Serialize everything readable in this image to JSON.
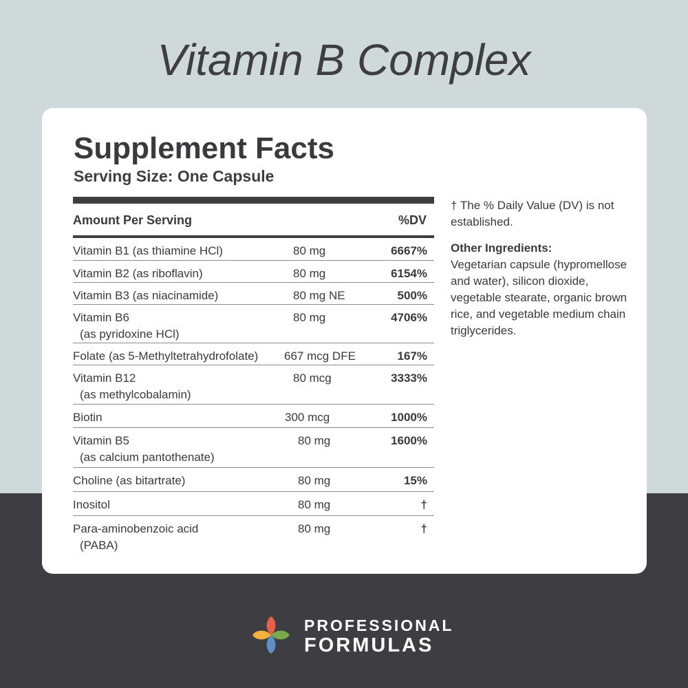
{
  "product_title": "Vitamin B Complex",
  "facts": {
    "heading": "Supplement Facts",
    "serving_size": "Serving Size: One Capsule",
    "amount_per_serving_label": "Amount Per Serving",
    "dv_label": "%DV",
    "rows": [
      {
        "name": "Vitamin B1 (as thiamine HCl)",
        "sub": "",
        "amount": "80 mg",
        "dv": "6667%"
      },
      {
        "name": "Vitamin B2 (as riboflavin)",
        "sub": "",
        "amount": "80 mg",
        "dv": "6154%"
      },
      {
        "name": "Vitamin B3 (as niacinamide)",
        "sub": "",
        "amount": "80 mg NE",
        "dv": "500%"
      },
      {
        "name": "Vitamin B6",
        "sub": "(as pyridoxine HCl)",
        "amount": "80 mg",
        "dv": "4706%"
      },
      {
        "name": "Folate (as 5-Methyltetrahydrofolate)",
        "sub": "",
        "amount": "667 mcg DFE",
        "dv": "167%"
      },
      {
        "name": "Vitamin B12",
        "sub": "(as methylcobalamin)",
        "amount": "80 mcg",
        "dv": "3333%"
      },
      {
        "name": "Biotin",
        "sub": "",
        "amount": "300 mcg",
        "dv": "1000%"
      },
      {
        "name": "Vitamin B5",
        "sub": "(as calcium pantothenate)",
        "amount": "80 mg",
        "dv": "1600%"
      },
      {
        "name": "Choline (as bitartrate)",
        "sub": "",
        "amount": "80 mg",
        "dv": "15%"
      },
      {
        "name": "Inositol",
        "sub": "",
        "amount": "80 mg",
        "dv": "†"
      },
      {
        "name": "Para-aminobenzoic acid",
        "sub": "(PABA)",
        "amount": "80 mg",
        "dv": "†"
      }
    ]
  },
  "side": {
    "dagger_note": "† The % Daily Value (DV) is not established.",
    "other_ingredients_heading": "Other Ingredients:",
    "other_ingredients_text": "Vegetarian capsule (hypromellose and water), silicon dioxide, vegetable stearate, organic brown rice, and vegetable medium chain triglycerides."
  },
  "brand": {
    "line1": "PROFESSIONAL",
    "line2": "FORMULAS",
    "logo_icon": "four-petal-logo-icon",
    "logo_colors": [
      "#e8604c",
      "#7aa84a",
      "#f0b23c",
      "#5f8fc5"
    ]
  },
  "colors": {
    "top_background": "#cfd9da",
    "bottom_background": "#3e3d42",
    "card": "#ffffff"
  }
}
